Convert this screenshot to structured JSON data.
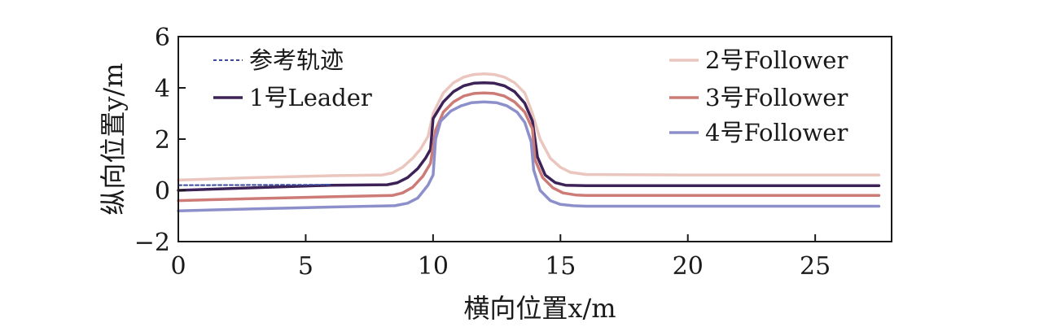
{
  "chart_data": {
    "type": "line",
    "xlabel": "横向位置x/m",
    "ylabel": "纵向位置y/m",
    "xlim": [
      0,
      28
    ],
    "ylim": [
      -2,
      6
    ],
    "xticks": [
      0,
      5,
      10,
      15,
      20,
      25
    ],
    "xtick_labels": [
      "0",
      "5",
      "10",
      "15",
      "20",
      "25"
    ],
    "yticks": [
      -2,
      0,
      2,
      4,
      6
    ],
    "ytick_labels": [
      "−2",
      "0",
      "2",
      "4",
      "6"
    ],
    "grid": false,
    "legend_placement": "top, split left and right",
    "series": [
      {
        "name": "参考轨迹",
        "style": "dashed",
        "color": "#3b4a9e",
        "x": [
          0,
          6
        ],
        "y": [
          0.2,
          0.22
        ]
      },
      {
        "name": "1号Leader",
        "style": "solid",
        "color": "#3d2257",
        "x": [
          0,
          3,
          6,
          8.2,
          8.6,
          9.0,
          9.4,
          9.7,
          9.9,
          10.0,
          10.4,
          10.8,
          11.2,
          11.6,
          12.0,
          12.4,
          12.8,
          13.2,
          13.6,
          13.9,
          14.1,
          14.4,
          14.8,
          15.2,
          16.0,
          20,
          27.5
        ],
        "y": [
          0.0,
          0.1,
          0.2,
          0.22,
          0.3,
          0.5,
          0.85,
          1.25,
          1.6,
          2.8,
          3.45,
          3.85,
          4.08,
          4.18,
          4.2,
          4.18,
          4.08,
          3.85,
          3.4,
          2.7,
          1.3,
          0.6,
          0.3,
          0.2,
          0.18,
          0.18,
          0.18
        ]
      },
      {
        "name": "2号Follower",
        "style": "solid",
        "color": "#ebc6bf",
        "x": [
          0,
          3,
          6,
          8.0,
          8.4,
          8.8,
          9.2,
          9.5,
          9.8,
          10.0,
          10.4,
          10.8,
          11.2,
          11.6,
          12.0,
          12.4,
          12.8,
          13.2,
          13.6,
          13.9,
          14.2,
          14.6,
          15.0,
          15.4,
          16.0,
          20,
          27.5
        ],
        "y": [
          0.4,
          0.5,
          0.57,
          0.6,
          0.68,
          0.9,
          1.25,
          1.6,
          2.1,
          3.0,
          3.8,
          4.2,
          4.42,
          4.52,
          4.55,
          4.52,
          4.42,
          4.2,
          3.8,
          3.0,
          2.0,
          1.25,
          0.9,
          0.7,
          0.62,
          0.6,
          0.6
        ]
      },
      {
        "name": "3号Follower",
        "style": "solid",
        "color": "#cd7b76",
        "x": [
          0,
          3,
          6,
          8.4,
          8.8,
          9.2,
          9.6,
          9.9,
          10.1,
          10.4,
          10.8,
          11.2,
          11.6,
          12.0,
          12.4,
          12.8,
          13.2,
          13.6,
          13.9,
          14.0,
          14.3,
          14.7,
          15.1,
          15.6,
          16.0,
          20,
          27.5
        ],
        "y": [
          -0.4,
          -0.32,
          -0.25,
          -0.2,
          -0.1,
          0.12,
          0.55,
          1.05,
          2.35,
          3.05,
          3.45,
          3.68,
          3.78,
          3.8,
          3.78,
          3.68,
          3.45,
          3.05,
          2.4,
          1.2,
          0.5,
          0.1,
          -0.1,
          -0.18,
          -0.2,
          -0.2,
          -0.2
        ]
      },
      {
        "name": "4号Follower",
        "style": "solid",
        "color": "#8d8fcb",
        "x": [
          0,
          3,
          6,
          8.5,
          9.0,
          9.4,
          9.8,
          10.0,
          10.1,
          10.3,
          10.7,
          11.1,
          11.5,
          12.0,
          12.5,
          12.9,
          13.3,
          13.6,
          13.85,
          13.95,
          14.2,
          14.6,
          15.0,
          15.5,
          16.0,
          20,
          27.5
        ],
        "y": [
          -0.8,
          -0.72,
          -0.65,
          -0.6,
          -0.5,
          -0.3,
          0.2,
          0.6,
          2.0,
          2.7,
          3.1,
          3.3,
          3.42,
          3.45,
          3.42,
          3.3,
          3.05,
          2.65,
          1.9,
          0.8,
          0.0,
          -0.4,
          -0.55,
          -0.6,
          -0.62,
          -0.62,
          -0.62
        ]
      }
    ]
  }
}
